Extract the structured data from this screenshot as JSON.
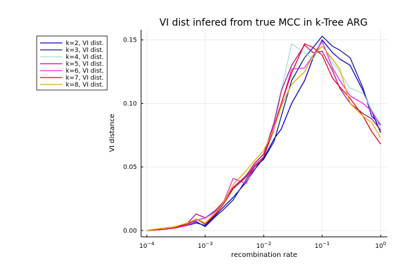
{
  "chart_data": {
    "type": "line",
    "title": "VI dist infered from true MCC in k-Tree ARG",
    "xlabel": "recombination rate",
    "ylabel": "VI distance",
    "xscale": "log10",
    "xlim": [
      8e-05,
      1.3
    ],
    "ylim": [
      -0.005,
      0.158
    ],
    "xticks": [
      {
        "value": 0.0001,
        "base": "10",
        "exp": "−4"
      },
      {
        "value": 0.001,
        "base": "10",
        "exp": "−3"
      },
      {
        "value": 0.01,
        "base": "10",
        "exp": "−2"
      },
      {
        "value": 0.1,
        "base": "10",
        "exp": "−1"
      },
      {
        "value": 1,
        "base": "10",
        "exp": "0"
      }
    ],
    "yticks": [
      {
        "value": 0.0,
        "label": "0.00"
      },
      {
        "value": 0.05,
        "label": "0.05"
      },
      {
        "value": 0.1,
        "label": "0.10"
      },
      {
        "value": 0.15,
        "label": "0.15"
      }
    ],
    "grid": true,
    "legend_position": "outer-top-left",
    "x": [
      0.0001,
      0.0002,
      0.0003,
      0.0005,
      0.0007,
      0.001,
      0.0015,
      0.002,
      0.003,
      0.005,
      0.007,
      0.01,
      0.015,
      0.02,
      0.03,
      0.05,
      0.07,
      0.1,
      0.15,
      0.2,
      0.3,
      0.5,
      0.7,
      1.0
    ],
    "series": [
      {
        "name": "k=2, VI dist.",
        "color": "#0000cc",
        "values": [
          0.0,
          0.001,
          0.002,
          0.004,
          0.006,
          0.004,
          0.012,
          0.018,
          0.026,
          0.038,
          0.048,
          0.057,
          0.072,
          0.08,
          0.1,
          0.118,
          0.136,
          0.15,
          0.14,
          0.135,
          0.13,
          0.11,
          0.094,
          0.077
        ]
      },
      {
        "name": "k=3, VI dist.",
        "color": "#1a1a99",
        "values": [
          0.0,
          0.001,
          0.002,
          0.005,
          0.007,
          0.003,
          0.011,
          0.016,
          0.024,
          0.04,
          0.05,
          0.056,
          0.07,
          0.09,
          0.118,
          0.136,
          0.144,
          0.153,
          0.145,
          0.142,
          0.136,
          0.112,
          0.09,
          0.083
        ]
      },
      {
        "name": "k=4, VI dist.",
        "color": "#a8dcdc",
        "values": [
          0.0,
          0.002,
          0.003,
          0.005,
          0.008,
          0.009,
          0.014,
          0.02,
          0.032,
          0.044,
          0.052,
          0.061,
          0.078,
          0.11,
          0.147,
          0.14,
          0.135,
          0.148,
          0.132,
          0.125,
          0.112,
          0.108,
          0.095,
          0.08
        ]
      },
      {
        "name": "k=5, VI dist.",
        "color": "#a01a8c",
        "values": [
          0.0,
          0.001,
          0.002,
          0.006,
          0.013,
          0.01,
          0.016,
          0.022,
          0.034,
          0.043,
          0.053,
          0.06,
          0.085,
          0.11,
          0.13,
          0.146,
          0.14,
          0.141,
          0.126,
          0.112,
          0.1,
          0.092,
          0.088,
          0.079
        ]
      },
      {
        "name": "k=6, VI dist.",
        "color": "#ee22ee",
        "values": [
          0.0,
          0.001,
          0.002,
          0.004,
          0.008,
          0.01,
          0.015,
          0.021,
          0.041,
          0.037,
          0.05,
          0.058,
          0.083,
          0.1,
          0.127,
          0.128,
          0.138,
          0.149,
          0.128,
          0.118,
          0.106,
          0.1,
          0.094,
          0.083
        ]
      },
      {
        "name": "k=7, VI dist.",
        "color": "#ee0011",
        "values": [
          0.0,
          0.001,
          0.002,
          0.005,
          0.009,
          0.005,
          0.013,
          0.02,
          0.033,
          0.042,
          0.051,
          0.058,
          0.08,
          0.1,
          0.124,
          0.147,
          0.144,
          0.138,
          0.12,
          0.113,
          0.104,
          0.09,
          0.078,
          0.068
        ]
      },
      {
        "name": "k=8, VI dist.",
        "color": "#e8a800",
        "values": [
          0.0,
          0.002,
          0.003,
          0.006,
          0.009,
          0.006,
          0.014,
          0.021,
          0.036,
          0.047,
          0.055,
          0.063,
          0.08,
          0.098,
          0.115,
          0.125,
          0.138,
          0.145,
          0.135,
          0.127,
          0.1,
          0.09,
          0.085,
          0.073
        ]
      }
    ]
  }
}
